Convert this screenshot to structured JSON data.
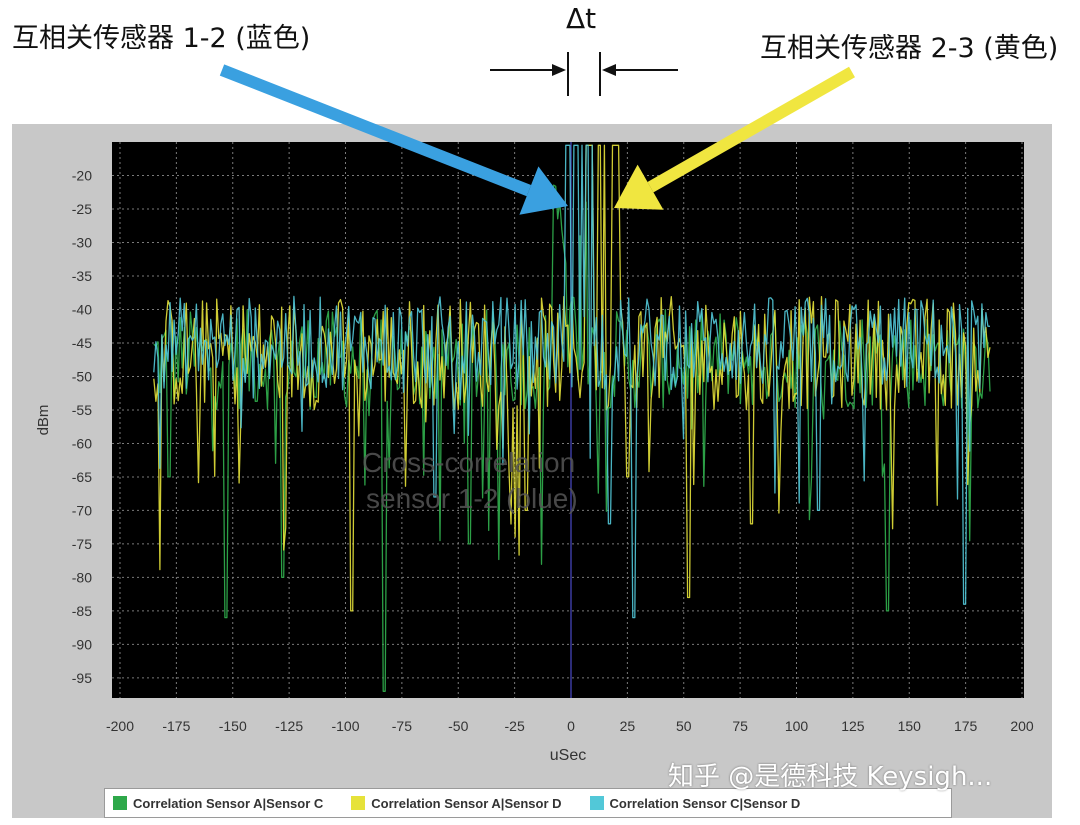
{
  "annotations": {
    "left_label": "互相关传感器 1-2 (蓝色)",
    "right_label": "互相关传感器 2-3 (黄色)",
    "delta_label": "Δt"
  },
  "watermark": "知乎 @是德科技 Keysigh...",
  "colors": {
    "panel_bg": "#c8c8c8",
    "plot_bg": "#000000",
    "grid": "#7a7a7a",
    "blue_arrow": "#3aa0e0",
    "yellow_arrow": "#f0e640",
    "series_green": "#2ea84a",
    "series_yellow": "#e6e23a",
    "series_cyan": "#52c8d8"
  },
  "chart_data": {
    "type": "line",
    "title": "",
    "overlay_text": [
      "Cross-correlation",
      "sensor 1-2 (blue)"
    ],
    "xlabel": "uSec",
    "ylabel": "dBm",
    "xlim": [
      -200,
      200
    ],
    "ylim": [
      -98,
      -15
    ],
    "x_ticks": [
      -200,
      -175,
      -150,
      -125,
      -100,
      -75,
      -50,
      -25,
      0,
      25,
      50,
      75,
      100,
      125,
      150,
      175,
      200
    ],
    "y_ticks": [
      -20,
      -25,
      -30,
      -35,
      -40,
      -45,
      -50,
      -55,
      -60,
      -65,
      -70,
      -75,
      -80,
      -85,
      -90,
      -95
    ],
    "grid": true,
    "legend_position": "bottom",
    "x_range_data": [
      -185,
      186
    ],
    "series": [
      {
        "name": "Correlation Sensor A|Sensor C",
        "color": "#2ea84a",
        "noise_floor_dBm": [
          -55,
          -40
        ],
        "peak": {
          "x": 0,
          "y": -42
        },
        "dips": [
          {
            "x": -178,
            "y": -65
          },
          {
            "x": -153,
            "y": -86
          },
          {
            "x": -128,
            "y": -80
          },
          {
            "x": -83,
            "y": -97
          },
          {
            "x": 140,
            "y": -85
          },
          {
            "x": -45,
            "y": -75
          }
        ]
      },
      {
        "name": "Correlation Sensor A|Sensor D",
        "color": "#e6e23a",
        "noise_floor_dBm": [
          -55,
          -38
        ],
        "peak": {
          "x": 14,
          "y": -16
        },
        "dips": [
          {
            "x": -97,
            "y": -85
          },
          {
            "x": 25,
            "y": -65
          },
          {
            "x": 52,
            "y": -83
          },
          {
            "x": -20,
            "y": -70
          },
          {
            "x": 80,
            "y": -72
          }
        ]
      },
      {
        "name": "Correlation Sensor C|Sensor D",
        "color": "#52c8d8",
        "noise_floor_dBm": [
          -52,
          -38
        ],
        "peak": {
          "x": 4,
          "y": -16
        },
        "dips": [
          {
            "x": 28,
            "y": -86
          },
          {
            "x": 17,
            "y": -72
          },
          {
            "x": 175,
            "y": -84
          },
          {
            "x": -60,
            "y": -68
          },
          {
            "x": 110,
            "y": -70
          }
        ]
      }
    ]
  }
}
